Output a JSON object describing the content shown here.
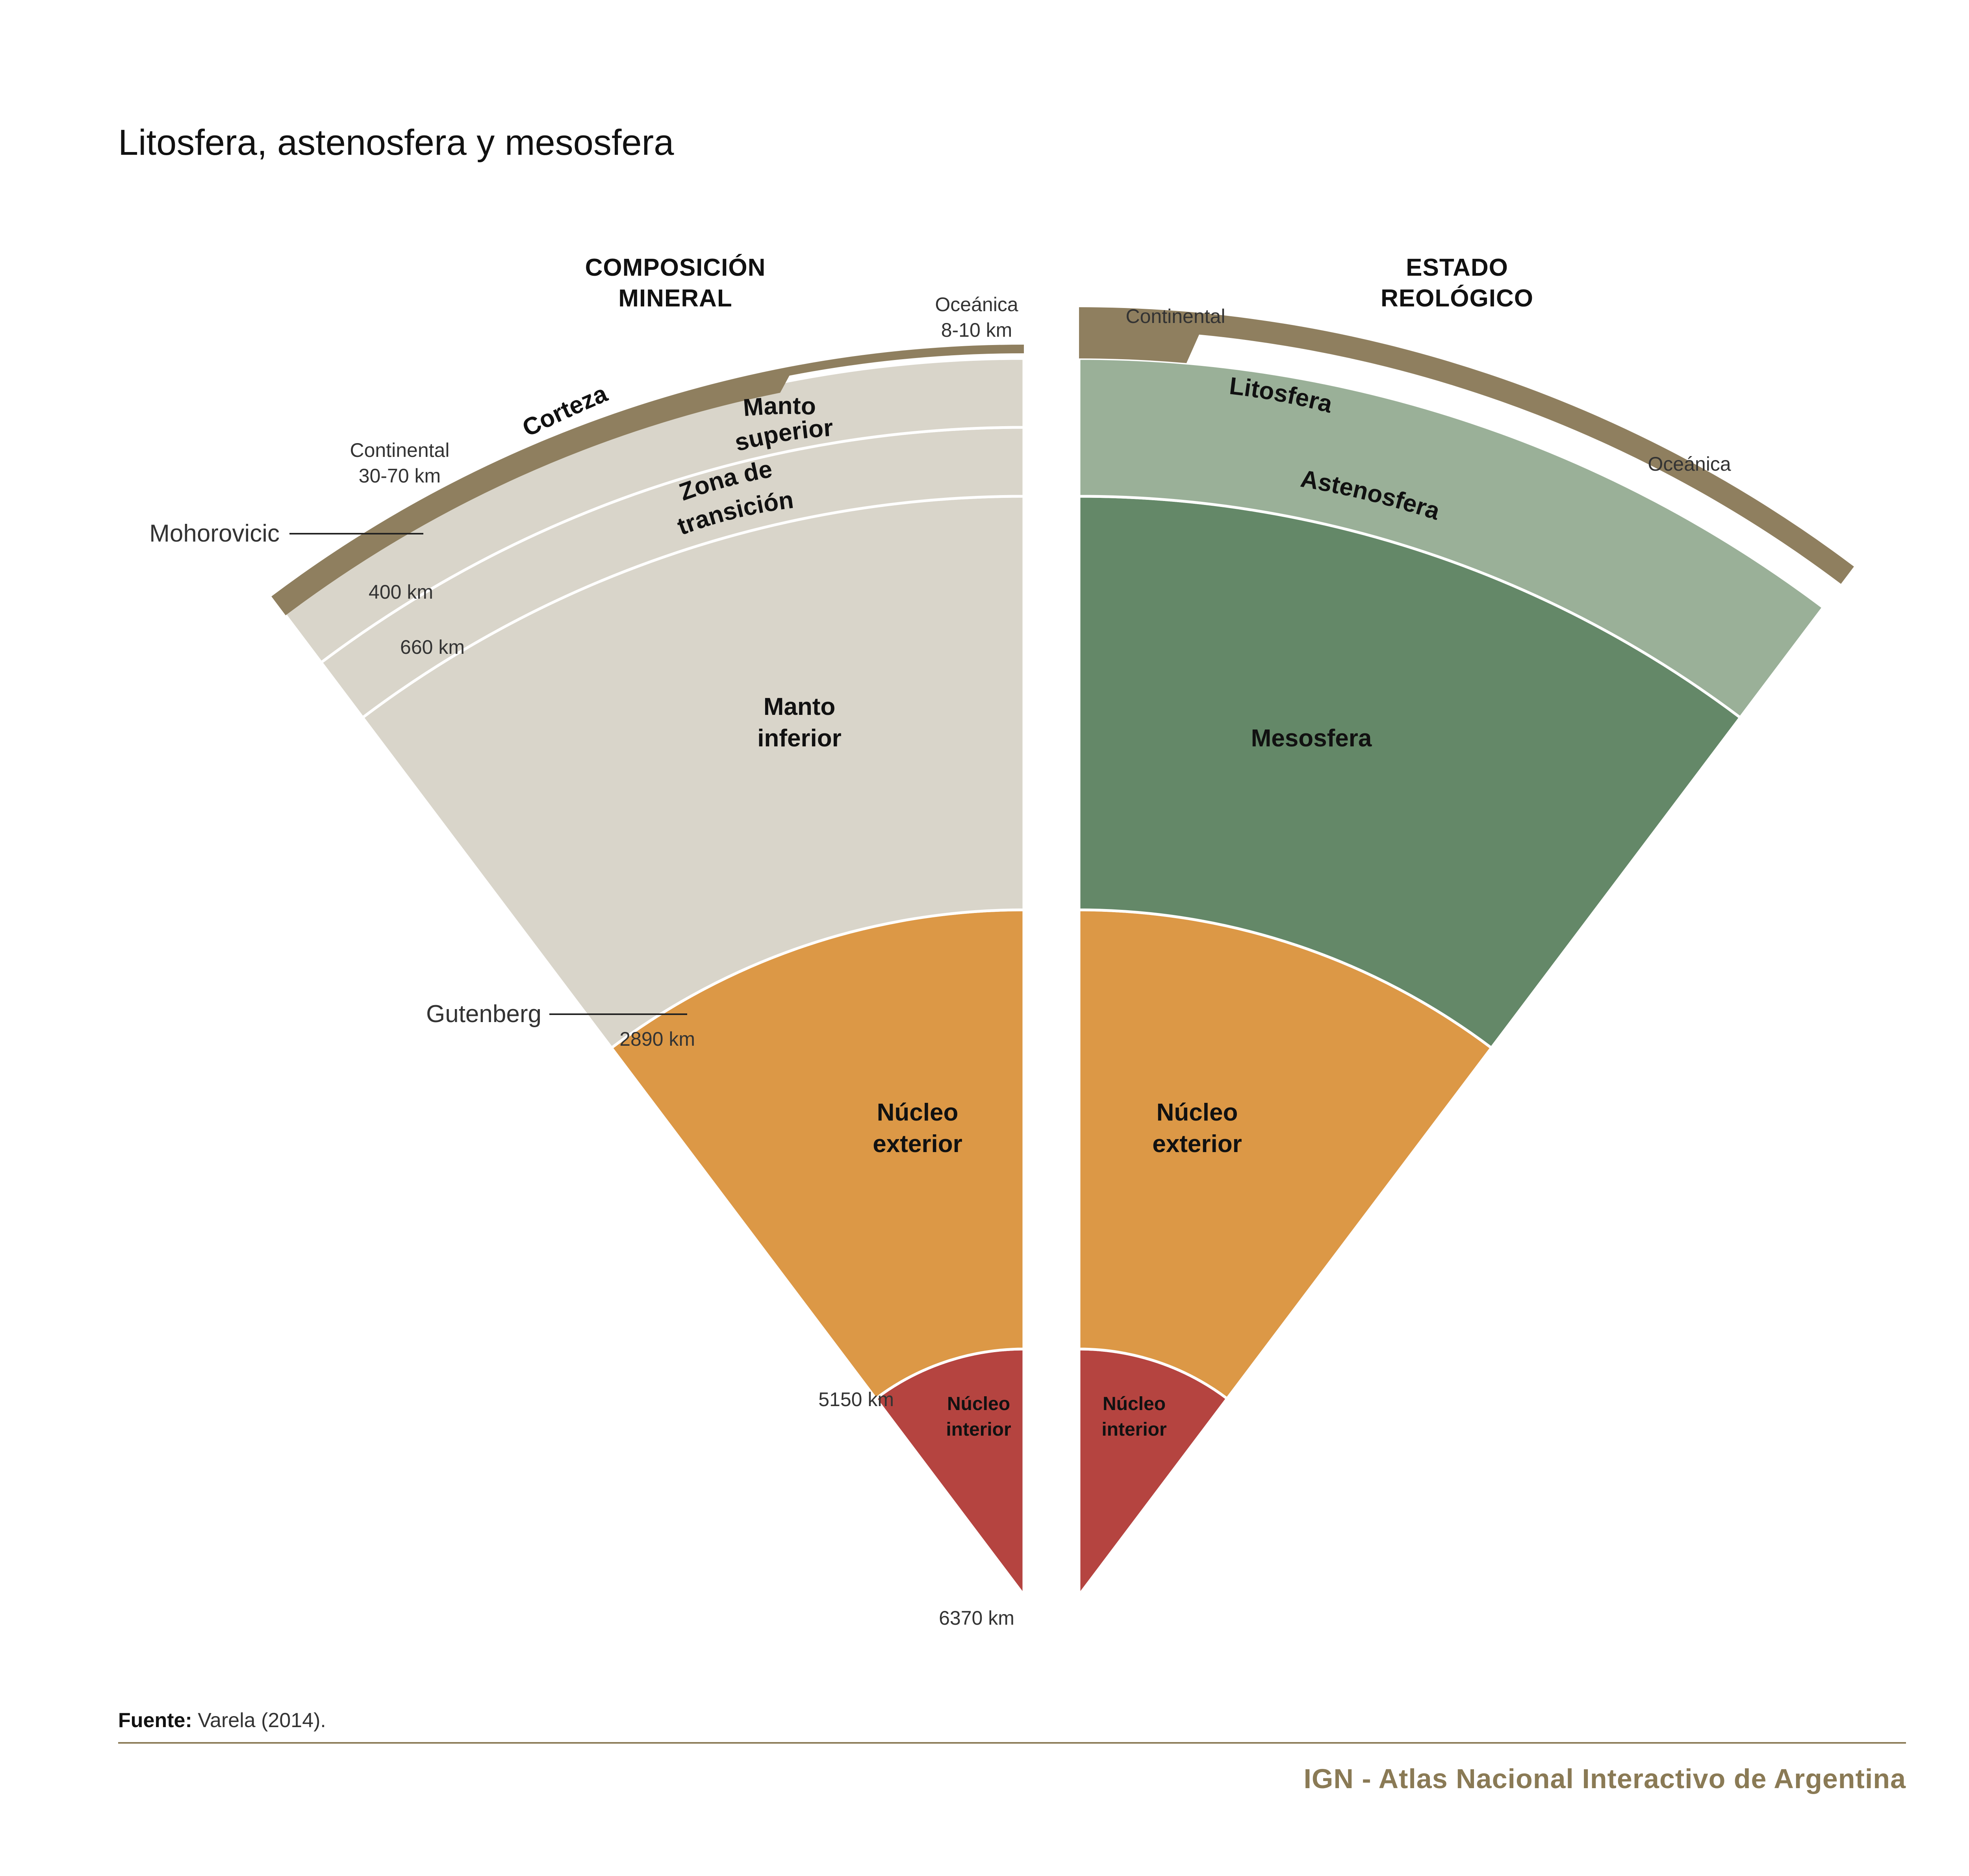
{
  "title": "Litosfera, astenosfera y mesosfera",
  "left_panel": {
    "header_line1": "COMPOSICIÓN",
    "header_line2": "MINERAL",
    "layers": {
      "corteza": "Corteza",
      "manto_superior_1": "Manto",
      "manto_superior_2": "superior",
      "zona_transicion_1": "Zona de",
      "zona_transicion_2": "transición",
      "manto_inferior_1": "Manto",
      "manto_inferior_2": "inferior",
      "nucleo_exterior_1": "Núcleo",
      "nucleo_exterior_2": "exterior",
      "nucleo_interior_1": "Núcleo",
      "nucleo_interior_2": "interior"
    },
    "notes": {
      "oceanica_1": "Oceánica",
      "oceanica_2": "8-10 km",
      "continental_1": "Continental",
      "continental_2": "30-70 km"
    },
    "boundaries": {
      "mohorovicic": "Mohorovicic",
      "gutenberg": "Gutenberg",
      "km_400": "400 km",
      "km_660": "660 km",
      "km_2890": "2890 km",
      "km_5150": "5150 km",
      "km_6370": "6370 km"
    }
  },
  "right_panel": {
    "header_line1": "ESTADO",
    "header_line2": "REOLÓGICO",
    "layers": {
      "litosfera": "Litosfera",
      "astenosfera": "Astenosfera",
      "mesosfera": "Mesosfera",
      "nucleo_exterior_1": "Núcleo",
      "nucleo_exterior_2": "exterior",
      "nucleo_interior_1": "Núcleo",
      "nucleo_interior_2": "interior"
    },
    "notes": {
      "continental": "Continental",
      "oceanica": "Oceánica"
    }
  },
  "colors": {
    "crust": "#8f7f5f",
    "mantle_composition": "#d9d5ca",
    "asthenosphere": "#9ab098",
    "mesosphere": "#648868",
    "outer_core": "#dc9846",
    "inner_core": "#b54440"
  },
  "source": {
    "label": "Fuente:",
    "text": " Varela (2014)."
  },
  "footer": "IGN - Atlas Nacional Interactivo de Argentina"
}
